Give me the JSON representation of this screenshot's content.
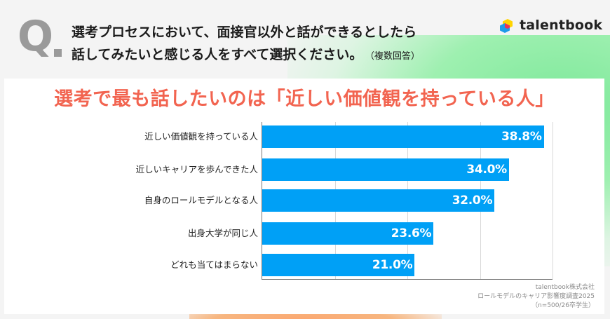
{
  "header": {
    "q_mark": "Q",
    "question_line1": "選考プロセスにおいて、面接官以外と話ができるとしたら",
    "question_line2": "話してみたいと感じる人をすべて選択ください。",
    "question_note": "（複数回答）",
    "logo_text": "talentbook",
    "logo_colors": [
      "#ffd400",
      "#e8345a",
      "#1e9be8"
    ]
  },
  "chart_data": {
    "type": "bar",
    "orientation": "horizontal",
    "title": "選考で最も話したいのは「近しい価値観を持っている人」",
    "categories": [
      "近しい価値観を持っている人",
      "近しいキャリアを歩んできた人",
      "自身のロールモデルとなる人",
      "出身大学が同じ人",
      "どれも当てはまらない"
    ],
    "values": [
      38.8,
      34.0,
      32.0,
      23.6,
      21.0
    ],
    "value_labels": [
      "38.8%",
      "34.0%",
      "32.0%",
      "23.6%",
      "21.0%"
    ],
    "xlabel": "",
    "ylabel": "",
    "xlim": [
      0,
      40
    ],
    "gridlines": [
      10,
      20,
      30,
      40
    ],
    "grid": true,
    "bar_color": "#00a0f6",
    "title_color": "#f26450"
  },
  "source": {
    "line1": "talentbook株式会社",
    "line2": "ロールモデルのキャリア影響度調査2025",
    "line3": "（n=500/26卒学生）"
  }
}
